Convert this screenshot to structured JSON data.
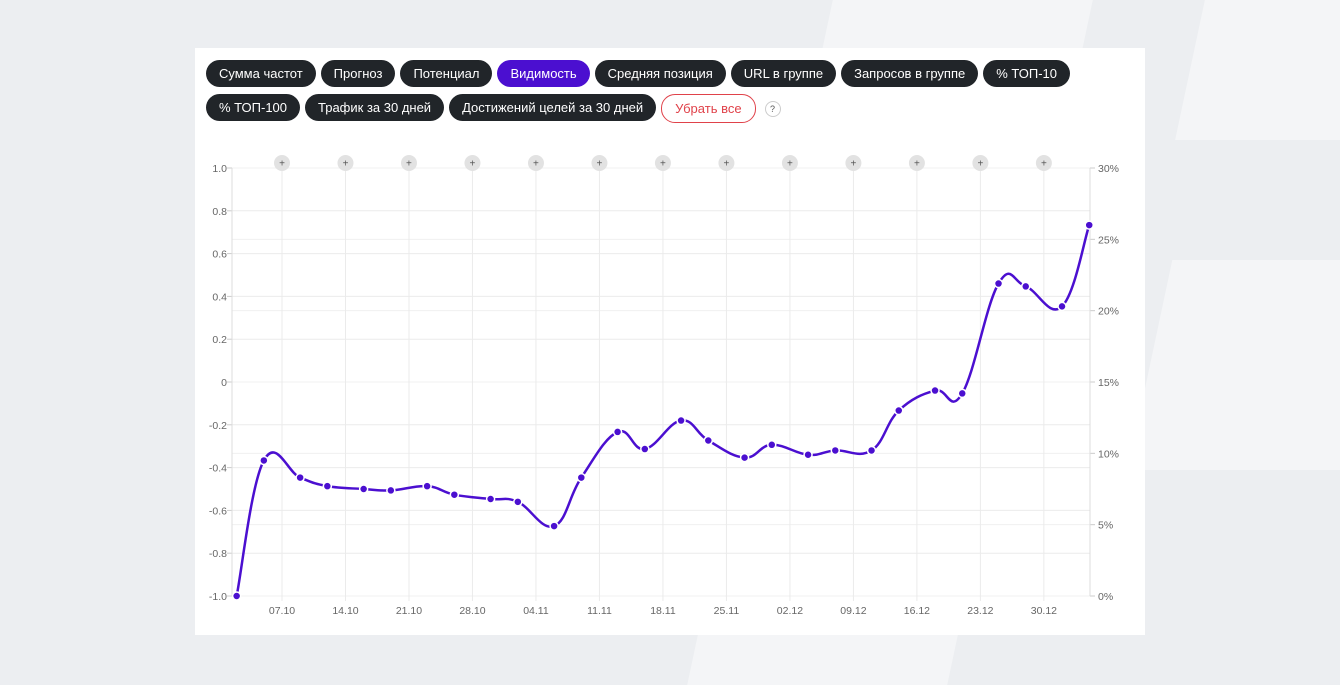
{
  "toolbar": {
    "buttons": [
      {
        "label": "Сумма частот",
        "active": false
      },
      {
        "label": "Прогноз",
        "active": false
      },
      {
        "label": "Потенциал",
        "active": false
      },
      {
        "label": "Видимость",
        "active": true
      },
      {
        "label": "Средняя позиция",
        "active": false
      },
      {
        "label": "URL в группе",
        "active": false
      },
      {
        "label": "Запросов в группе",
        "active": false
      },
      {
        "label": "% ТОП-10",
        "active": false
      },
      {
        "label": "% ТОП-100",
        "active": false
      },
      {
        "label": "Трафик за 30 дней",
        "active": false
      },
      {
        "label": "Достижений целей за 30 дней",
        "active": false
      }
    ],
    "clear_label": "Убрать все",
    "help_label": "?"
  },
  "colors": {
    "accent": "#4b0fd0",
    "button": "#212529",
    "clear": "#e0424a"
  },
  "chart_data": {
    "type": "line",
    "smooth": true,
    "grid": true,
    "left_axis": {
      "ylim": [
        -1.0,
        1.0
      ],
      "ticks": [
        "1.0",
        "0.8",
        "0.6",
        "0.4",
        "0.2",
        "0",
        "-0.2",
        "-0.4",
        "-0.6",
        "-0.8",
        "-1.0"
      ]
    },
    "right_axis": {
      "ylim": [
        0,
        30
      ],
      "unit": "%",
      "ticks": [
        "30%",
        "25%",
        "20%",
        "15%",
        "10%",
        "5%",
        "0%"
      ]
    },
    "x_ticks": [
      "07.10",
      "14.10",
      "21.10",
      "28.10",
      "04.11",
      "11.11",
      "18.11",
      "25.11",
      "02.12",
      "09.12",
      "16.12",
      "23.12",
      "30.12"
    ],
    "annotation_marker": "+",
    "series": [
      {
        "axis": "right",
        "color": "#4b0fd0",
        "x": [
          "02.10",
          "05.10",
          "09.10",
          "12.10",
          "16.10",
          "19.10",
          "23.10",
          "26.10",
          "30.10",
          "02.11",
          "06.11",
          "09.11",
          "13.11",
          "16.11",
          "20.11",
          "23.11",
          "27.11",
          "30.11",
          "04.12",
          "07.12",
          "11.12",
          "14.12",
          "18.12",
          "21.12",
          "25.12",
          "28.12",
          "01.01",
          "04.01"
        ],
        "values": [
          0,
          9.5,
          8.3,
          7.7,
          7.5,
          7.4,
          7.7,
          7.1,
          6.8,
          6.6,
          4.9,
          8.3,
          11.5,
          10.3,
          12.3,
          10.9,
          9.7,
          10.6,
          9.9,
          10.2,
          10.2,
          13.0,
          14.4,
          14.2,
          21.9,
          21.7,
          20.3,
          26.0
        ]
      }
    ]
  }
}
